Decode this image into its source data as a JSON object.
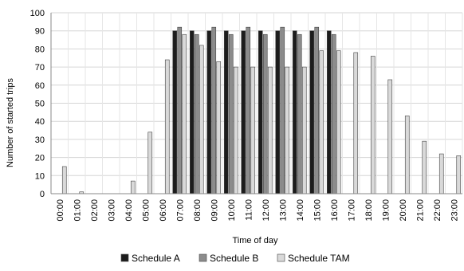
{
  "chart_data": {
    "type": "bar",
    "title": "",
    "xlabel": "Time of day",
    "ylabel": "Number of started trips",
    "ylim": [
      0,
      100
    ],
    "yticks": [
      0,
      10,
      20,
      30,
      40,
      50,
      60,
      70,
      80,
      90,
      100
    ],
    "grid": true,
    "legend_position": "bottom",
    "categories": [
      "00:00",
      "01:00",
      "02:00",
      "03:00",
      "04:00",
      "05:00",
      "06:00",
      "07:00",
      "08:00",
      "09:00",
      "10:00",
      "11:00",
      "12:00",
      "13:00",
      "14:00",
      "15:00",
      "16:00",
      "17:00",
      "18:00",
      "19:00",
      "20:00",
      "21:00",
      "22:00",
      "23:00"
    ],
    "series": [
      {
        "name": "Schedule A",
        "color": "#1c1c1c",
        "values": [
          0,
          0,
          0,
          0,
          0,
          0,
          0,
          90,
          90,
          90,
          90,
          90,
          90,
          90,
          90,
          90,
          90,
          0,
          0,
          0,
          0,
          0,
          0,
          0
        ]
      },
      {
        "name": "Schedule B",
        "color": "#8c8c8c",
        "values": [
          0,
          0,
          0,
          0,
          0,
          0,
          0,
          92,
          88,
          92,
          88,
          92,
          88,
          92,
          88,
          92,
          88,
          0,
          0,
          0,
          0,
          0,
          0,
          0
        ]
      },
      {
        "name": "Schedule TAM",
        "color": "#d9d9d9",
        "values": [
          15,
          1,
          0,
          0,
          7,
          34,
          74,
          88,
          82,
          73,
          70,
          70,
          70,
          70,
          70,
          79,
          79,
          78,
          76,
          63,
          43,
          29,
          22,
          21
        ]
      }
    ]
  }
}
